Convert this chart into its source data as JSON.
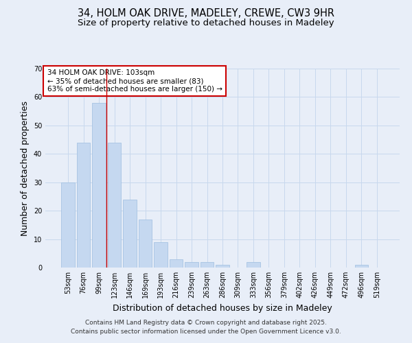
{
  "title_line1": "34, HOLM OAK DRIVE, MADELEY, CREWE, CW3 9HR",
  "title_line2": "Size of property relative to detached houses in Madeley",
  "xlabel": "Distribution of detached houses by size in Madeley",
  "ylabel": "Number of detached properties",
  "categories": [
    "53sqm",
    "76sqm",
    "99sqm",
    "123sqm",
    "146sqm",
    "169sqm",
    "193sqm",
    "216sqm",
    "239sqm",
    "263sqm",
    "286sqm",
    "309sqm",
    "333sqm",
    "356sqm",
    "379sqm",
    "402sqm",
    "426sqm",
    "449sqm",
    "472sqm",
    "496sqm",
    "519sqm"
  ],
  "values": [
    30,
    44,
    58,
    44,
    24,
    17,
    9,
    3,
    2,
    2,
    1,
    0,
    2,
    0,
    0,
    0,
    0,
    0,
    0,
    1,
    0
  ],
  "bar_color": "#c5d8f0",
  "bar_edge_color": "#9dbde0",
  "red_line_index": 2.5,
  "annotation_line1": "34 HOLM OAK DRIVE: 103sqm",
  "annotation_line2": "← 35% of detached houses are smaller (83)",
  "annotation_line3": "63% of semi-detached houses are larger (150) →",
  "annotation_box_facecolor": "#ffffff",
  "annotation_box_edgecolor": "#cc0000",
  "ylim": [
    0,
    70
  ],
  "yticks": [
    0,
    10,
    20,
    30,
    40,
    50,
    60,
    70
  ],
  "grid_color": "#c8d8ed",
  "bg_color": "#e8eef8",
  "red_line_color": "#cc0000",
  "title_fontsize": 10.5,
  "subtitle_fontsize": 9.5,
  "axis_label_fontsize": 9,
  "tick_fontsize": 7,
  "annotation_fontsize": 7.5,
  "footer_fontsize": 6.5,
  "footer_line1": "Contains HM Land Registry data © Crown copyright and database right 2025.",
  "footer_line2": "Contains public sector information licensed under the Open Government Licence v3.0."
}
